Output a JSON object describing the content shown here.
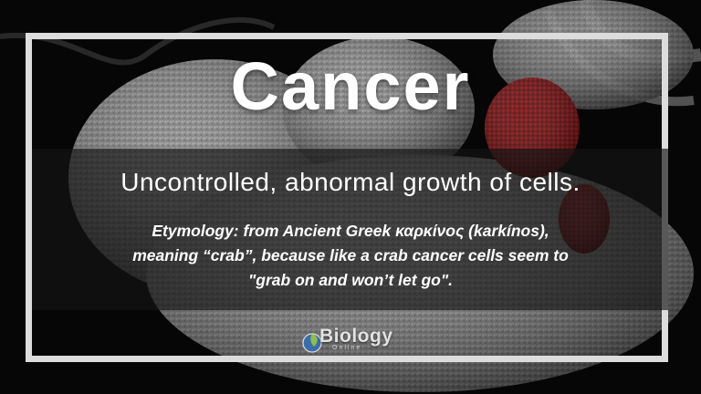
{
  "title": "Cancer",
  "definition": "Uncontrolled, abnormal growth of cells.",
  "etymology": {
    "line1": "Etymology: from Ancient Greek καρκίνος (karkínos),",
    "line2": "meaning “crab”, because like a crab cancer cells seem to",
    "line3": "\"grab on and won’t let go\"."
  },
  "logo": {
    "name": "Biology",
    "sub": "Online",
    "icon": "leaf-logo-icon"
  },
  "colors": {
    "background": "#070707",
    "frame": "#dcdcdc",
    "text": "#ffffff",
    "cell_gray": "#9a9a9a",
    "cancer_cell_red": "#8a1212"
  }
}
